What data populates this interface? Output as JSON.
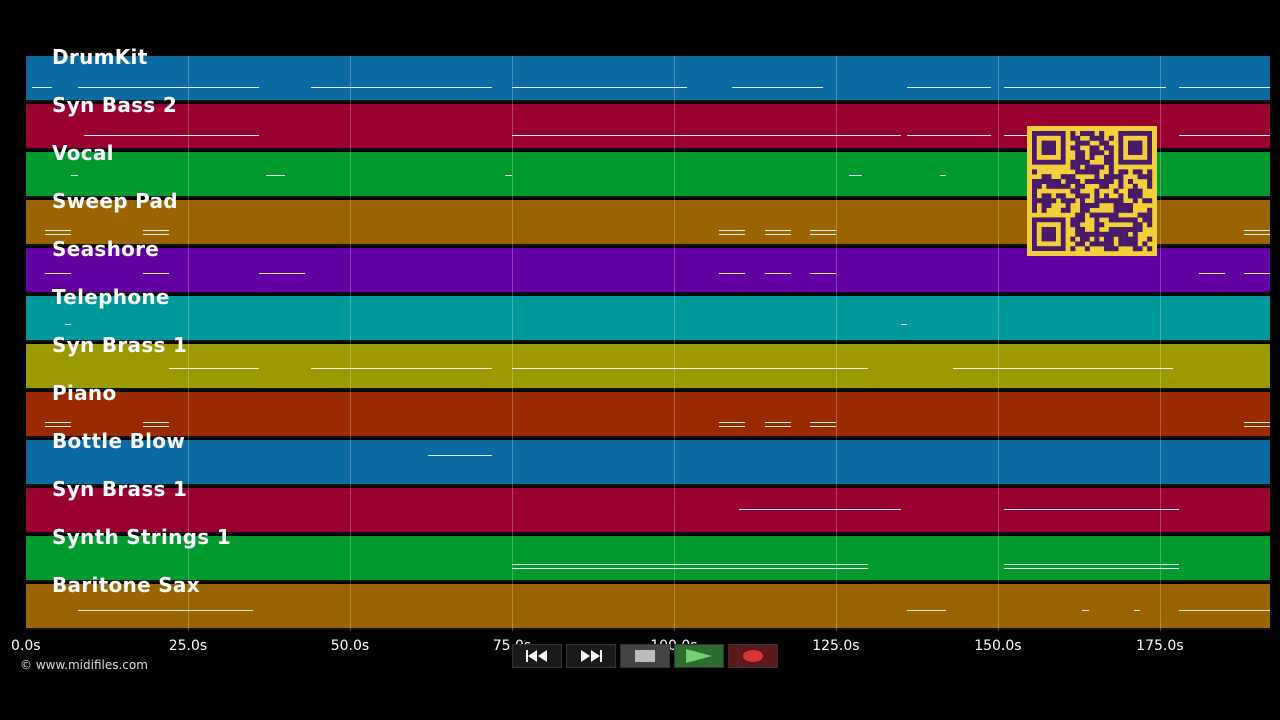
{
  "tracks": [
    {
      "name": "DrumKit",
      "color": "#0a6aa1"
    },
    {
      "name": "Syn Bass 2",
      "color": "#99002f"
    },
    {
      "name": "Vocal",
      "color": "#009a2e"
    },
    {
      "name": "Sweep Pad",
      "color": "#9a6500"
    },
    {
      "name": "Seashore",
      "color": "#6300a1"
    },
    {
      "name": "Telephone",
      "color": "#009999"
    },
    {
      "name": "Syn Brass 1",
      "color": "#9a9a00"
    },
    {
      "name": "Piano",
      "color": "#9a2a00"
    },
    {
      "name": "Bottle Blow",
      "color": "#0a6aa1"
    },
    {
      "name": "Syn Brass 1",
      "color": "#99002f"
    },
    {
      "name": "Synth Strings 1",
      "color": "#009a2e"
    },
    {
      "name": "Baritone Sax",
      "color": "#9a6500"
    }
  ],
  "axis": {
    "ticks": [
      "0.0s",
      "25.0s",
      "50.0s",
      "75.0s",
      "100.0s",
      "125.0s",
      "150.0s",
      "175.0s"
    ],
    "tick_values": [
      0,
      25,
      50,
      75,
      100,
      125,
      150,
      175
    ],
    "range": [
      0,
      192
    ]
  },
  "transport": {
    "rewind": "rewind-icon",
    "forward": "fast-forward-icon",
    "stop": "stop-icon",
    "play": "play-icon",
    "record": "record-icon"
  },
  "footer": {
    "copyright": "© www.midifiles.com"
  },
  "qr": {
    "icon": "qr-code-icon",
    "color": "#f2d03a",
    "module_color": "#4a1a6a"
  }
}
